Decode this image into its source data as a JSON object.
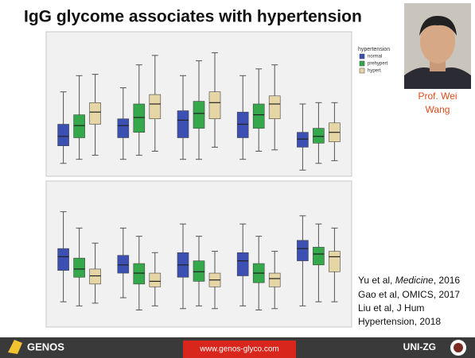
{
  "slide": {
    "title": "IgG glycome associates with hypertension",
    "photo_caption": [
      "Prof. Wei",
      "Wang"
    ],
    "references": [
      [
        "Yu et al, ",
        "Medicine",
        ", 2016"
      ],
      "Gao et al, OMICS, 2017",
      "Liu et al, J Hum",
      "Hypertension, 2018"
    ],
    "footer": {
      "left": "GENOS",
      "center": "www.genos-glyco.com",
      "right": "UNI-ZG"
    }
  },
  "chart_data": [
    {
      "type": "box",
      "legend_title": "hypertension",
      "categories": [
        null,
        null,
        null,
        null,
        null
      ],
      "ylim": [
        0,
        100
      ],
      "series": [
        {
          "name": "normal",
          "color": "#3c50b4",
          "values": [
            [
              6,
              19,
              26,
              35,
              59
            ],
            [
              9,
              25,
              34,
              39,
              62
            ],
            [
              9,
              25,
              38,
              45,
              71
            ],
            [
              9,
              25,
              35,
              44,
              71
            ],
            [
              1,
              18,
              24,
              29,
              50
            ]
          ]
        },
        {
          "name": "prehypert",
          "color": "#35a84c",
          "values": [
            [
              9,
              25,
              34,
              42,
              71
            ],
            [
              12,
              29,
              40,
              50,
              79
            ],
            [
              9,
              32,
              43,
              52,
              82
            ],
            [
              15,
              32,
              42,
              50,
              76
            ],
            [
              6,
              21,
              26,
              32,
              51
            ]
          ]
        },
        {
          "name": "hypert",
          "color": "#e6d6a6",
          "values": [
            [
              12,
              35,
              44,
              51,
              72
            ],
            [
              15,
              39,
              50,
              57,
              86
            ],
            [
              18,
              39,
              51,
              59,
              88
            ],
            [
              16,
              39,
              50,
              56,
              79
            ],
            [
              8,
              22,
              29,
              36,
              51
            ]
          ]
        }
      ]
    },
    {
      "type": "box",
      "categories": [
        null,
        null,
        null,
        null,
        null
      ],
      "ylim": [
        0,
        100
      ],
      "series": [
        {
          "name": "normal",
          "color": "#3c50b4",
          "values": [
            [
              15,
              38,
              48,
              54,
              81
            ],
            [
              18,
              36,
              42,
              49,
              69
            ],
            [
              10,
              33,
              42,
              51,
              72
            ],
            [
              12,
              34,
              45,
              51,
              72
            ],
            [
              12,
              45,
              54,
              60,
              78
            ]
          ]
        },
        {
          "name": "prehypert",
          "color": "#35a84c",
          "values": [
            [
              12,
              33,
              39,
              47,
              69
            ],
            [
              9,
              28,
              36,
              43,
              63
            ],
            [
              12,
              30,
              37,
              45,
              63
            ],
            [
              9,
              29,
              36,
              43,
              63
            ],
            [
              15,
              42,
              50,
              55,
              72
            ]
          ]
        },
        {
          "name": "hypert",
          "color": "#e6d6a6",
          "values": [
            [
              14,
              28,
              34,
              39,
              58
            ],
            [
              12,
              26,
              30,
              36,
              51
            ],
            [
              10,
              26,
              31,
              36,
              52
            ],
            [
              10,
              26,
              32,
              36,
              52
            ],
            [
              15,
              37,
              48,
              52,
              69
            ]
          ]
        }
      ]
    }
  ]
}
